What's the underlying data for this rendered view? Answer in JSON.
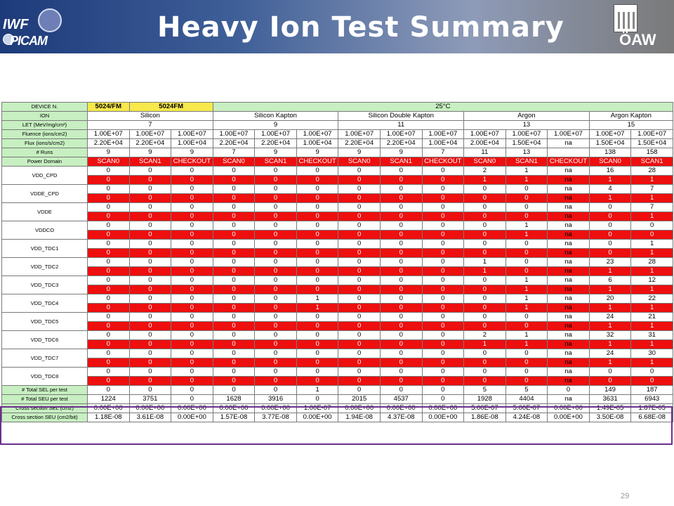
{
  "slide": {
    "title": "Heavy Ion Test Summary",
    "logo_left_top": "IWF",
    "logo_left_bottom": "PICAM",
    "logo_right": "ÖAW",
    "page_number": "29"
  },
  "table": {
    "device_label": "DEVICE N.",
    "device_a": "5024/FM",
    "device_b": "5024FM",
    "temperature": "25°C",
    "ion_label": "ION",
    "ions": [
      "Silicon",
      "Silicon Kapton",
      "Silicon Double Kapton",
      "Argon",
      "Argon Kapton"
    ],
    "let_label": "LET (MeV/mg/cm²)",
    "let_values": [
      "7",
      "9",
      "11",
      "13",
      "15"
    ],
    "fluence_label": "Fluence (ions/cm2)",
    "fluence": [
      "1.00E+07",
      "1.00E+07",
      "1.00E+07",
      "1.00E+07",
      "1.00E+07",
      "1.00E+07",
      "1.00E+07",
      "1.00E+07",
      "1.00E+07",
      "1.00E+07",
      "1.00E+07",
      "1.00E+07",
      "1.00E+07",
      "1.00E+07"
    ],
    "flux_label": "Flux (ions/s/cm2)",
    "flux": [
      "2.20E+04",
      "2.20E+04",
      "1.00E+04",
      "2.20E+04",
      "2.20E+04",
      "1.00E+04",
      "2.20E+04",
      "2.20E+04",
      "1.00E+04",
      "2.00E+04",
      "1.50E+04",
      "na",
      "1.50E+04",
      "1.50E+04"
    ],
    "runs_label": "# Runs",
    "runs": [
      "9",
      "9",
      "9",
      "7",
      "9",
      "9",
      "9",
      "9",
      "7",
      "11",
      "13",
      "",
      "138",
      "158"
    ],
    "power_label": "Power Domain",
    "power": [
      "SCAN0",
      "SCAN1",
      "CHECKOUT",
      "SCAN0",
      "SCAN1",
      "CHECKOUT",
      "SCAN0",
      "SCAN1",
      "CHECKOUT",
      "SCAN0",
      "SCAN1",
      "CHECKOUT",
      "SCAN0",
      "SCAN1"
    ],
    "domains": [
      {
        "name": "VDD_CPD",
        "sel": [
          "0",
          "0",
          "0",
          "0",
          "0",
          "0",
          "0",
          "0",
          "0",
          "2",
          "1",
          "na",
          "16",
          "28"
        ],
        "seu": [
          "0",
          "0",
          "0",
          "0",
          "0",
          "0",
          "0",
          "0",
          "0",
          "1",
          "1",
          "na",
          "1",
          "1"
        ]
      },
      {
        "name": "VDDE_CPD",
        "sel": [
          "0",
          "0",
          "0",
          "0",
          "0",
          "0",
          "0",
          "0",
          "0",
          "0",
          "0",
          "na",
          "4",
          "7"
        ],
        "seu": [
          "0",
          "0",
          "0",
          "0",
          "0",
          "0",
          "0",
          "0",
          "0",
          "0",
          "0",
          "na",
          "1",
          "1"
        ]
      },
      {
        "name": "VDDE",
        "sel": [
          "0",
          "0",
          "0",
          "0",
          "0",
          "0",
          "0",
          "0",
          "0",
          "0",
          "0",
          "na",
          "0",
          "7"
        ],
        "seu": [
          "0",
          "0",
          "0",
          "0",
          "0",
          "0",
          "0",
          "0",
          "0",
          "0",
          "0",
          "na",
          "0",
          "1"
        ]
      },
      {
        "name": "VDDCO",
        "sel": [
          "0",
          "0",
          "0",
          "0",
          "0",
          "0",
          "0",
          "0",
          "0",
          "0",
          "1",
          "na",
          "0",
          "0"
        ],
        "seu": [
          "0",
          "0",
          "0",
          "0",
          "0",
          "0",
          "0",
          "0",
          "0",
          "0",
          "1",
          "na",
          "0",
          "0"
        ]
      },
      {
        "name": "VDD_TDC1",
        "sel": [
          "0",
          "0",
          "0",
          "0",
          "0",
          "0",
          "0",
          "0",
          "0",
          "0",
          "0",
          "na",
          "0",
          "1"
        ],
        "seu": [
          "0",
          "0",
          "0",
          "0",
          "0",
          "0",
          "0",
          "0",
          "0",
          "0",
          "0",
          "na",
          "0",
          "1"
        ]
      },
      {
        "name": "VDD_TDC2",
        "sel": [
          "0",
          "0",
          "0",
          "0",
          "0",
          "0",
          "0",
          "0",
          "0",
          "1",
          "0",
          "na",
          "23",
          "28"
        ],
        "seu": [
          "0",
          "0",
          "0",
          "0",
          "0",
          "0",
          "0",
          "0",
          "0",
          "1",
          "0",
          "na",
          "1",
          "1"
        ]
      },
      {
        "name": "VDD_TDC3",
        "sel": [
          "0",
          "0",
          "0",
          "0",
          "0",
          "0",
          "0",
          "0",
          "0",
          "0",
          "1",
          "na",
          "6",
          "12"
        ],
        "seu": [
          "0",
          "0",
          "0",
          "0",
          "0",
          "0",
          "0",
          "0",
          "0",
          "0",
          "1",
          "na",
          "1",
          "1"
        ]
      },
      {
        "name": "VDD_TDC4",
        "sel": [
          "0",
          "0",
          "0",
          "0",
          "0",
          "1",
          "0",
          "0",
          "0",
          "0",
          "1",
          "na",
          "20",
          "22"
        ],
        "seu": [
          "0",
          "0",
          "0",
          "0",
          "0",
          "1",
          "0",
          "0",
          "0",
          "0",
          "1",
          "na",
          "1",
          "1"
        ]
      },
      {
        "name": "VDD_TDC5",
        "sel": [
          "0",
          "0",
          "0",
          "0",
          "0",
          "0",
          "0",
          "0",
          "0",
          "0",
          "0",
          "na",
          "24",
          "21"
        ],
        "seu": [
          "0",
          "0",
          "0",
          "0",
          "0",
          "0",
          "0",
          "0",
          "0",
          "0",
          "0",
          "na",
          "1",
          "1"
        ]
      },
      {
        "name": "VDD_TDC6",
        "sel": [
          "0",
          "0",
          "0",
          "0",
          "0",
          "0",
          "0",
          "0",
          "0",
          "2",
          "1",
          "na",
          "32",
          "31"
        ],
        "seu": [
          "0",
          "0",
          "0",
          "0",
          "0",
          "0",
          "0",
          "0",
          "0",
          "1",
          "1",
          "na",
          "1",
          "1"
        ]
      },
      {
        "name": "VDD_TDC7",
        "sel": [
          "0",
          "0",
          "0",
          "0",
          "0",
          "0",
          "0",
          "0",
          "0",
          "0",
          "0",
          "na",
          "24",
          "30"
        ],
        "seu": [
          "0",
          "0",
          "0",
          "0",
          "0",
          "0",
          "0",
          "0",
          "0",
          "0",
          "0",
          "na",
          "1",
          "1"
        ]
      },
      {
        "name": "VDD_TDC8",
        "sel": [
          "0",
          "0",
          "0",
          "0",
          "0",
          "0",
          "0",
          "0",
          "0",
          "0",
          "0",
          "na",
          "0",
          "0"
        ],
        "seu": [
          "0",
          "0",
          "0",
          "0",
          "0",
          "0",
          "0",
          "0",
          "0",
          "0",
          "0",
          "na",
          "0",
          "0"
        ]
      }
    ],
    "total_sel_label": "# Total SEL per test",
    "total_sel": [
      "0",
      "0",
      "0",
      "0",
      "0",
      "1",
      "0",
      "0",
      "0",
      "5",
      "5",
      "0",
      "149",
      "187"
    ],
    "total_seu_label": "# Total SEU per test",
    "total_seu": [
      "1224",
      "3751",
      "0",
      "1628",
      "3916",
      "0",
      "2015",
      "4537",
      "0",
      "1928",
      "4404",
      "na",
      "3631",
      "6943"
    ],
    "xsel_label": "Cross section SEL (cm2)",
    "xsel": [
      "0.00E+00",
      "0.00E+00",
      "0.00E+00",
      "0.00E+00",
      "0.00E+00",
      "1.00E-07",
      "0.00E+00",
      "0.00E+00",
      "0.00E+00",
      "5.00E-07",
      "5.00E-07",
      "0.00E+00",
      "1.49E-05",
      "1.87E-05"
    ],
    "xseu_label": "Cross section SEU (cm2/bit)",
    "xseu": [
      "1.18E-08",
      "3.61E-08",
      "0.00E+00",
      "1.57E-08",
      "3.77E-08",
      "0.00E+00",
      "1.94E-08",
      "4.37E-08",
      "0.00E+00",
      "1.86E-08",
      "4.24E-08",
      "0.00E+00",
      "3.50E-08",
      "6.68E-08"
    ]
  },
  "colors": {
    "header_blue": "#1d3a7a",
    "table_green": "#c7efc1",
    "table_yellow": "#f7e84c",
    "seu_red": "#ee0f0f",
    "highlight_purple": "#6a2f8f"
  }
}
